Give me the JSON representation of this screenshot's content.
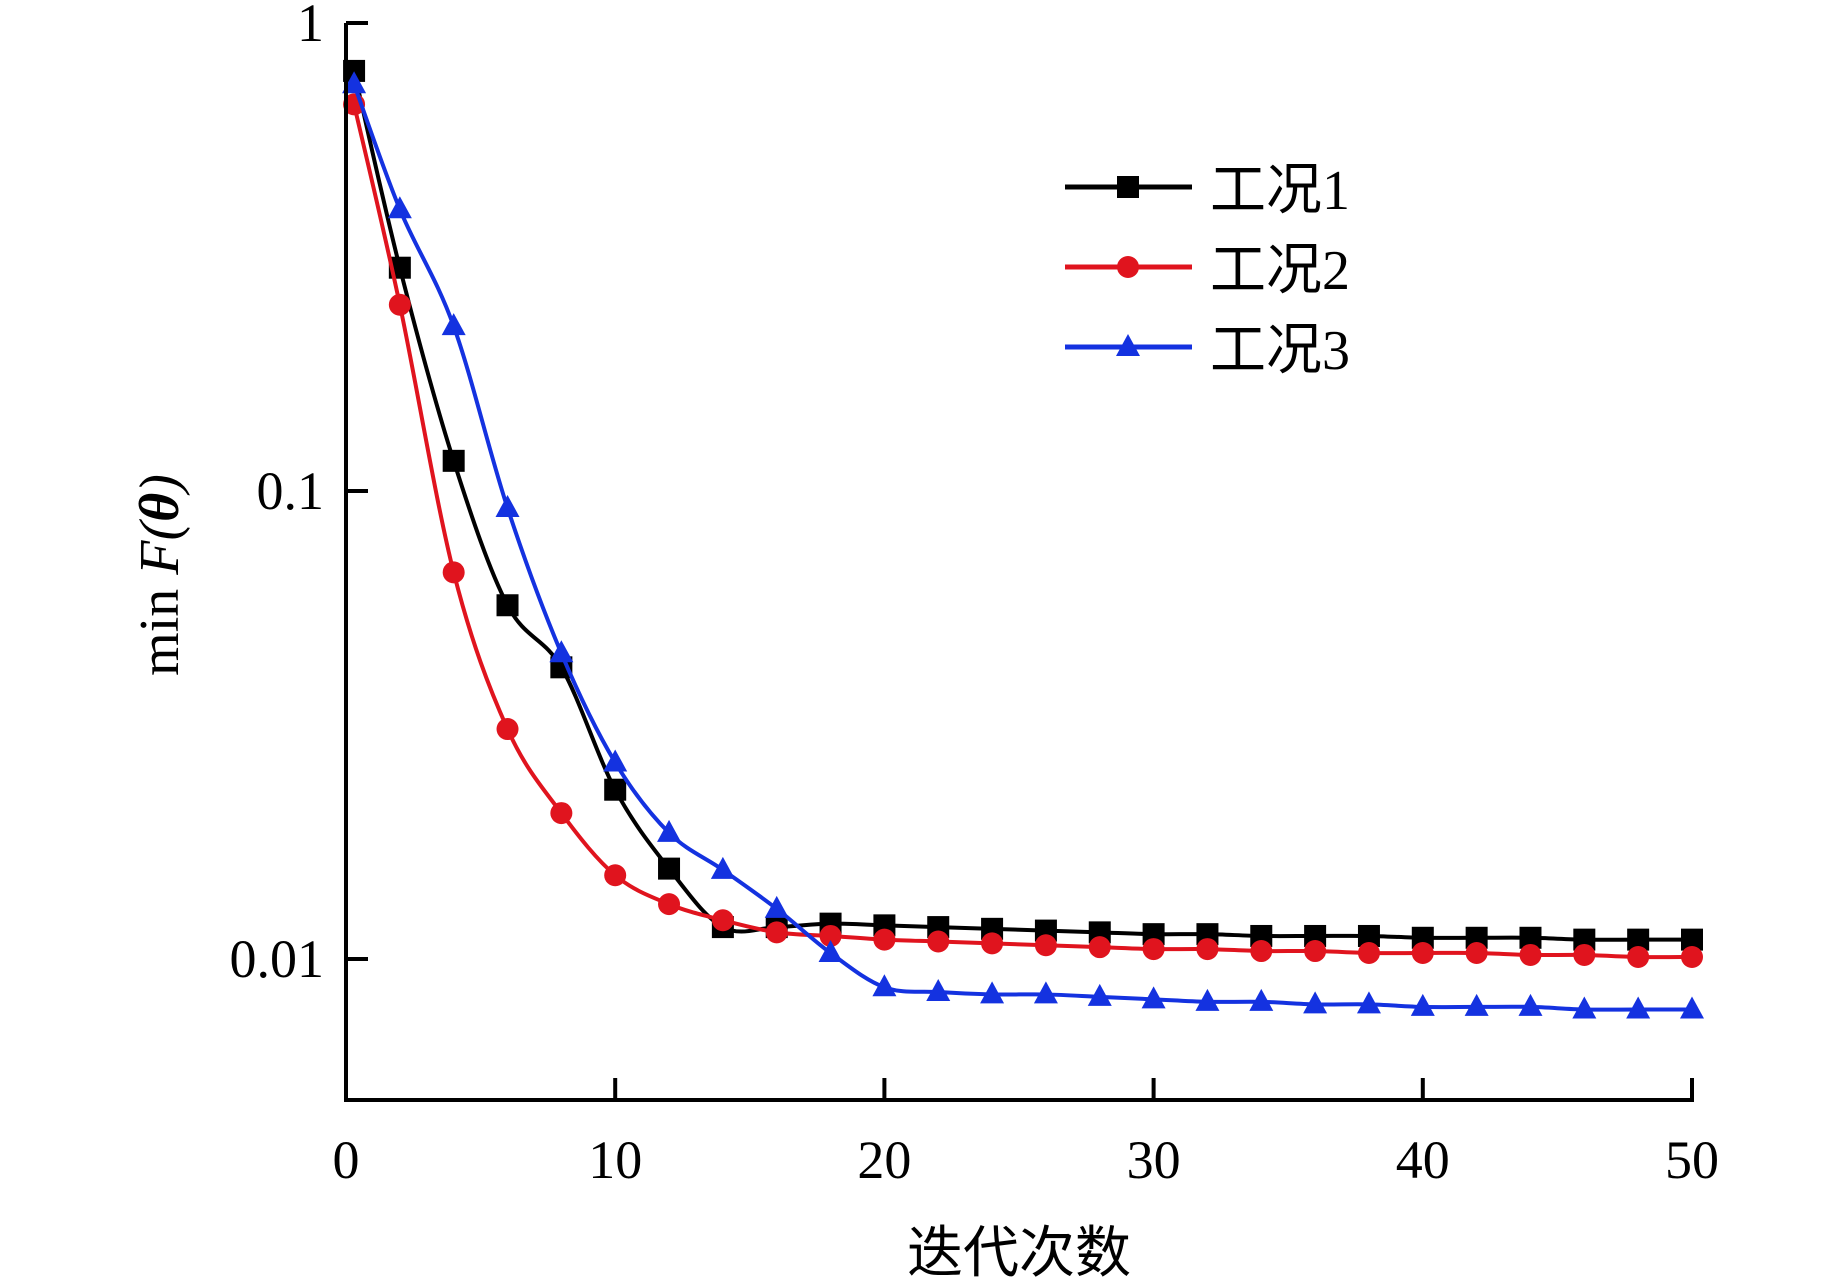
{
  "chart_data": {
    "type": "line",
    "title": "",
    "xlabel": "迭代次数",
    "ylabel_prefix": "min ",
    "ylabel_func": "F(",
    "ylabel_var": "θ",
    "ylabel_close": ")",
    "xlim": [
      0,
      50
    ],
    "ylim": [
      0.005,
      1
    ],
    "yscale": "log",
    "x_ticks": [
      0,
      10,
      20,
      30,
      40,
      50
    ],
    "x_tick_labels": [
      "0",
      "10",
      "20",
      "30",
      "40",
      "50"
    ],
    "y_ticks": [
      1,
      0.1,
      0.01
    ],
    "y_tick_labels": [
      "1",
      "0.1",
      "0.01"
    ],
    "grid": false,
    "legend_position": "top-right",
    "x": [
      0.3,
      2,
      4,
      6,
      8,
      10,
      12,
      14,
      16,
      18,
      20,
      22,
      24,
      26,
      28,
      30,
      32,
      34,
      36,
      38,
      40,
      42,
      44,
      46,
      48,
      50
    ],
    "series": [
      {
        "name": "工况1",
        "color": "#000000",
        "marker": "square",
        "values": [
          0.79,
          0.3,
          0.116,
          0.057,
          0.042,
          0.023,
          0.0156,
          0.0117,
          0.0117,
          0.0119,
          0.0118,
          0.0117,
          0.0116,
          0.0115,
          0.0114,
          0.0113,
          0.0113,
          0.0112,
          0.0112,
          0.0112,
          0.0111,
          0.0111,
          0.0111,
          0.011,
          0.011,
          0.011
        ]
      },
      {
        "name": "工况2",
        "color": "#e0141e",
        "marker": "circle",
        "values": [
          0.67,
          0.25,
          0.067,
          0.031,
          0.0205,
          0.0151,
          0.0131,
          0.0121,
          0.0114,
          0.0112,
          0.011,
          0.0109,
          0.0108,
          0.0107,
          0.0106,
          0.0105,
          0.0105,
          0.0104,
          0.0104,
          0.0103,
          0.0103,
          0.0103,
          0.0102,
          0.0102,
          0.0101,
          0.0101
        ]
      },
      {
        "name": "工况3",
        "color": "#1432e0",
        "marker": "triangle",
        "values": [
          0.74,
          0.4,
          0.225,
          0.092,
          0.045,
          0.0263,
          0.0186,
          0.0155,
          0.0128,
          0.0103,
          0.0087,
          0.0085,
          0.0084,
          0.0084,
          0.0083,
          0.0082,
          0.0081,
          0.0081,
          0.008,
          0.008,
          0.0079,
          0.0079,
          0.0079,
          0.0078,
          0.0078,
          0.0078
        ]
      }
    ]
  }
}
